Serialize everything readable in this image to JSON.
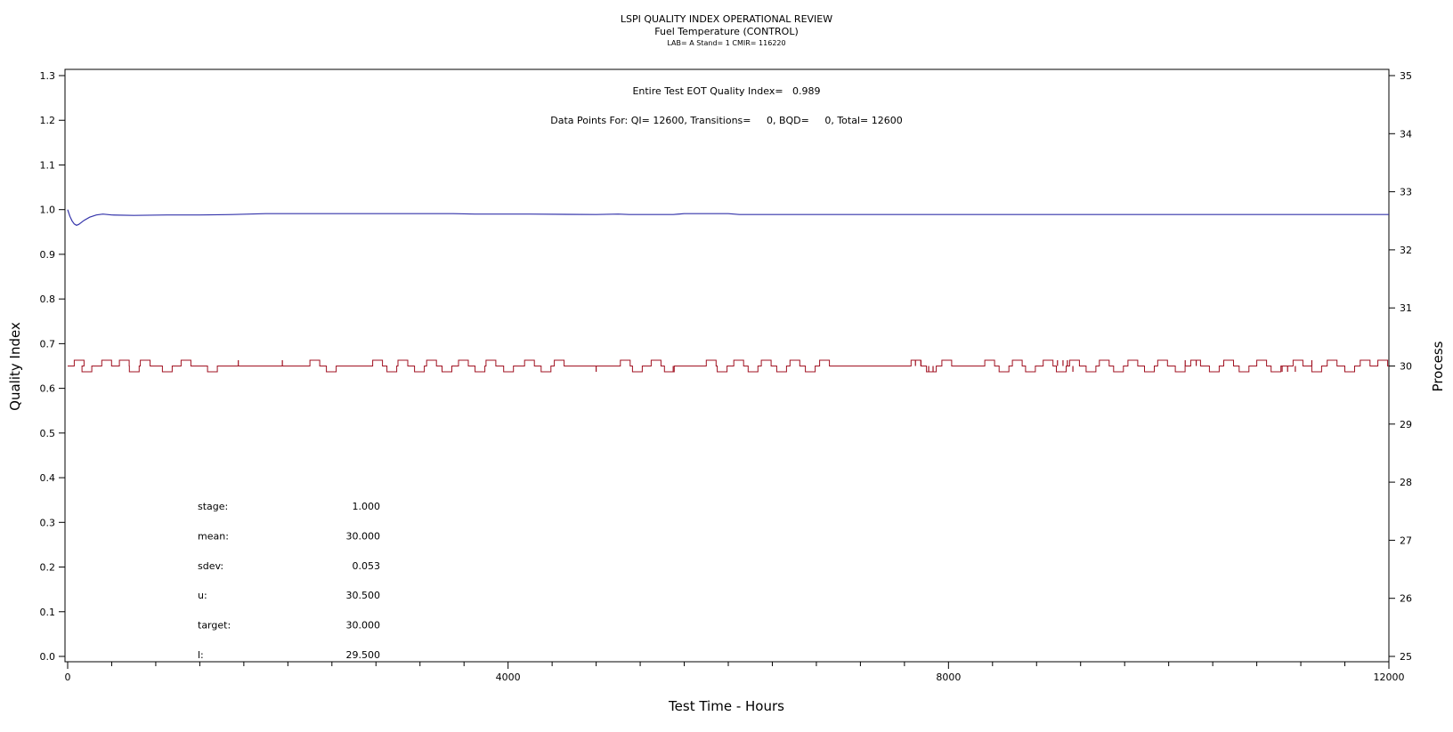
{
  "chart_data": {
    "type": "line",
    "title": "LSPI QUALITY INDEX OPERATIONAL REVIEW",
    "subtitle": "Fuel Temperature (CONTROL)",
    "subsubtitle": "LAB= A Stand= 1 CMIR= 116220",
    "xlabel": "Test Time - Hours",
    "ylabel_left": "Quality Index",
    "ylabel_right": "Process",
    "xlim": [
      0,
      12000
    ],
    "ylim_left": [
      0.0,
      1.3
    ],
    "ylim_right": [
      25,
      35
    ],
    "x_ticks": [
      0,
      4000,
      8000,
      12000
    ],
    "x_minor_step": 400,
    "y_ticks_left": [
      "0.0",
      "0.1",
      "0.2",
      "0.3",
      "0.4",
      "0.5",
      "0.6",
      "0.7",
      "0.8",
      "0.9",
      "1.0",
      "1.1",
      "1.2",
      "1.3"
    ],
    "y_ticks_right": [
      "25",
      "26",
      "27",
      "28",
      "29",
      "30",
      "31",
      "32",
      "33",
      "34",
      "35"
    ],
    "annotations": [
      "Entire Test EOT Quality Index=   0.989",
      "Data Points For: QI= 12600, Transitions=     0, BQD=     0, Total= 12600"
    ],
    "stats": [
      {
        "label": "stage:",
        "value": "1.000"
      },
      {
        "label": "mean:",
        "value": "30.000"
      },
      {
        "label": "sdev:",
        "value": "0.053"
      },
      {
        "label": "u:",
        "value": "30.500"
      },
      {
        "label": "target:",
        "value": "30.000"
      },
      {
        "label": "l:",
        "value": "29.500"
      }
    ],
    "series": [
      {
        "axis": "left",
        "color": "#3333aa",
        "x": [
          0,
          20,
          40,
          60,
          80,
          100,
          150,
          200,
          260,
          320,
          400,
          600,
          900,
          1200,
          1500,
          1800,
          2400,
          3000,
          3500,
          3700,
          4200,
          4800,
          5000,
          5100,
          5500,
          5600,
          6000,
          6100,
          7000,
          8000,
          9000,
          10000,
          11000,
          12000
        ],
        "y": [
          1.0,
          0.985,
          0.975,
          0.968,
          0.965,
          0.967,
          0.976,
          0.983,
          0.988,
          0.99,
          0.988,
          0.987,
          0.988,
          0.988,
          0.989,
          0.991,
          0.991,
          0.991,
          0.991,
          0.99,
          0.99,
          0.989,
          0.99,
          0.989,
          0.989,
          0.991,
          0.991,
          0.989,
          0.989,
          0.989,
          0.989,
          0.989,
          0.989,
          0.989
        ]
      },
      {
        "axis": "right",
        "color": "#a01020",
        "baseline": 30.0,
        "upper": 30.1,
        "lower": 29.9,
        "excursions": [
          {
            "x": 60,
            "dir": "up"
          },
          {
            "x": 130,
            "dir": "down"
          },
          {
            "x": 310,
            "dir": "up"
          },
          {
            "x": 470,
            "dir": "up"
          },
          {
            "x": 560,
            "dir": "down"
          },
          {
            "x": 660,
            "dir": "up"
          },
          {
            "x": 860,
            "dir": "down"
          },
          {
            "x": 1030,
            "dir": "up"
          },
          {
            "x": 1270,
            "dir": "down"
          },
          {
            "x": 2200,
            "dir": "up"
          },
          {
            "x": 2350,
            "dir": "down"
          },
          {
            "x": 2770,
            "dir": "up"
          },
          {
            "x": 2900,
            "dir": "down"
          },
          {
            "x": 3000,
            "dir": "up"
          },
          {
            "x": 3150,
            "dir": "down"
          },
          {
            "x": 3260,
            "dir": "up"
          },
          {
            "x": 3400,
            "dir": "down"
          },
          {
            "x": 3550,
            "dir": "up"
          },
          {
            "x": 3700,
            "dir": "down"
          },
          {
            "x": 3800,
            "dir": "up"
          },
          {
            "x": 3960,
            "dir": "down"
          },
          {
            "x": 4150,
            "dir": "up"
          },
          {
            "x": 4300,
            "dir": "down"
          },
          {
            "x": 4420,
            "dir": "up"
          },
          {
            "x": 5020,
            "dir": "up"
          },
          {
            "x": 5130,
            "dir": "down"
          },
          {
            "x": 5300,
            "dir": "up"
          },
          {
            "x": 5420,
            "dir": "down"
          },
          {
            "x": 5800,
            "dir": "up"
          },
          {
            "x": 5900,
            "dir": "down"
          },
          {
            "x": 6050,
            "dir": "up"
          },
          {
            "x": 6180,
            "dir": "down"
          },
          {
            "x": 6300,
            "dir": "up"
          },
          {
            "x": 6440,
            "dir": "down"
          },
          {
            "x": 6560,
            "dir": "up"
          },
          {
            "x": 6700,
            "dir": "down"
          },
          {
            "x": 6830,
            "dir": "up"
          },
          {
            "x": 7660,
            "dir": "up"
          },
          {
            "x": 7800,
            "dir": "down"
          },
          {
            "x": 7940,
            "dir": "up"
          },
          {
            "x": 8330,
            "dir": "up"
          },
          {
            "x": 8460,
            "dir": "down"
          },
          {
            "x": 8580,
            "dir": "up"
          },
          {
            "x": 8700,
            "dir": "down"
          },
          {
            "x": 8860,
            "dir": "up"
          },
          {
            "x": 8980,
            "dir": "down"
          },
          {
            "x": 9100,
            "dir": "up"
          },
          {
            "x": 9250,
            "dir": "down"
          },
          {
            "x": 9370,
            "dir": "up"
          },
          {
            "x": 9500,
            "dir": "down"
          },
          {
            "x": 9630,
            "dir": "up"
          },
          {
            "x": 9780,
            "dir": "down"
          },
          {
            "x": 9900,
            "dir": "up"
          },
          {
            "x": 10060,
            "dir": "down"
          },
          {
            "x": 10200,
            "dir": "up"
          },
          {
            "x": 10370,
            "dir": "down"
          },
          {
            "x": 10500,
            "dir": "up"
          },
          {
            "x": 10640,
            "dir": "down"
          },
          {
            "x": 10800,
            "dir": "up"
          },
          {
            "x": 10930,
            "dir": "down"
          },
          {
            "x": 11130,
            "dir": "up"
          },
          {
            "x": 11300,
            "dir": "down"
          },
          {
            "x": 11440,
            "dir": "up"
          },
          {
            "x": 11600,
            "dir": "down"
          },
          {
            "x": 11740,
            "dir": "up"
          },
          {
            "x": 11900,
            "dir": "up"
          }
        ],
        "spikes": [
          {
            "x": 1550,
            "dir": "up"
          },
          {
            "x": 1950,
            "dir": "up"
          },
          {
            "x": 4800,
            "dir": "down"
          },
          {
            "x": 5500,
            "dir": "down"
          },
          {
            "x": 7700,
            "dir": "up"
          },
          {
            "x": 7750,
            "dir": "up"
          },
          {
            "x": 7820,
            "dir": "down"
          },
          {
            "x": 7860,
            "dir": "down"
          },
          {
            "x": 8990,
            "dir": "up"
          },
          {
            "x": 9040,
            "dir": "up"
          },
          {
            "x": 9080,
            "dir": "up"
          },
          {
            "x": 9130,
            "dir": "down"
          },
          {
            "x": 10150,
            "dir": "up"
          },
          {
            "x": 10250,
            "dir": "up"
          },
          {
            "x": 11030,
            "dir": "down"
          },
          {
            "x": 11080,
            "dir": "down"
          },
          {
            "x": 11150,
            "dir": "down"
          },
          {
            "x": 11300,
            "dir": "up"
          }
        ]
      }
    ],
    "grid": false,
    "legend": "none"
  }
}
